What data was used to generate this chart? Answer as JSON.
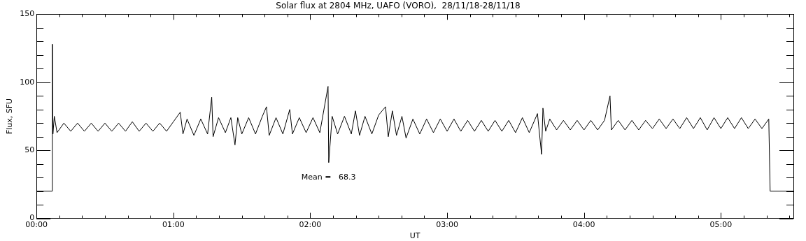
{
  "chart_data": {
    "type": "line",
    "title": "Solar flux at 2804 MHz, UAFO (VORO),  28/11/18-28/11/18",
    "xlabel": "UT",
    "ylabel": "Flux, SFU",
    "x": [
      0,
      0.115,
      0.116,
      0.12,
      0.13,
      0.15,
      0.2,
      0.25,
      0.3,
      0.35,
      0.4,
      0.45,
      0.5,
      0.55,
      0.6,
      0.65,
      0.7,
      0.75,
      0.8,
      0.85,
      0.9,
      0.95,
      1.0,
      1.05,
      1.07,
      1.1,
      1.15,
      1.2,
      1.25,
      1.28,
      1.29,
      1.33,
      1.38,
      1.42,
      1.45,
      1.47,
      1.5,
      1.55,
      1.6,
      1.65,
      1.68,
      1.7,
      1.75,
      1.8,
      1.85,
      1.87,
      1.92,
      1.97,
      2.02,
      2.07,
      2.13,
      2.135,
      2.16,
      2.2,
      2.25,
      2.3,
      2.33,
      2.36,
      2.4,
      2.45,
      2.5,
      2.55,
      2.57,
      2.6,
      2.63,
      2.67,
      2.7,
      2.75,
      2.8,
      2.85,
      2.9,
      2.95,
      3.0,
      3.05,
      3.1,
      3.15,
      3.2,
      3.25,
      3.3,
      3.35,
      3.4,
      3.45,
      3.5,
      3.55,
      3.6,
      3.66,
      3.69,
      3.7,
      3.72,
      3.75,
      3.8,
      3.85,
      3.9,
      3.95,
      4.0,
      4.05,
      4.1,
      4.15,
      4.19,
      4.2,
      4.25,
      4.3,
      4.35,
      4.4,
      4.45,
      4.5,
      4.55,
      4.6,
      4.65,
      4.7,
      4.75,
      4.8,
      4.85,
      4.9,
      4.95,
      5.0,
      5.05,
      5.1,
      5.15,
      5.2,
      5.25,
      5.3,
      5.35,
      5.36,
      5.53
    ],
    "series": [
      {
        "color": "#000000",
        "values": [
          20,
          20,
          128,
          62,
          75,
          63,
          70,
          64,
          70,
          64,
          70,
          64,
          70,
          64,
          70,
          64,
          71,
          64,
          70,
          64,
          70,
          64,
          71,
          78,
          62,
          73,
          61,
          73,
          62,
          89,
          60,
          74,
          63,
          74,
          54,
          74,
          62,
          74,
          62,
          75,
          82,
          61,
          74,
          62,
          80,
          62,
          74,
          63,
          74,
          63,
          97,
          41,
          75,
          62,
          75,
          62,
          79,
          61,
          75,
          62,
          76,
          82,
          60,
          79,
          61,
          75,
          59,
          73,
          62,
          73,
          63,
          73,
          64,
          73,
          64,
          72,
          64,
          72,
          64,
          72,
          64,
          72,
          63,
          74,
          63,
          77,
          47,
          81,
          64,
          73,
          65,
          72,
          65,
          72,
          65,
          72,
          65,
          72,
          90,
          65,
          72,
          65,
          72,
          65,
          72,
          66,
          73,
          66,
          73,
          66,
          74,
          66,
          74,
          65,
          74,
          66,
          74,
          66,
          74,
          66,
          73,
          66,
          73,
          20,
          20
        ]
      }
    ],
    "xlim": [
      0,
      5.53
    ],
    "xticks": [
      {
        "value": 0,
        "label": "00:00"
      },
      {
        "value": 0.1667,
        "label": null
      },
      {
        "value": 0.3333,
        "label": null
      },
      {
        "value": 0.5,
        "label": null
      },
      {
        "value": 0.6667,
        "label": null
      },
      {
        "value": 0.8333,
        "label": null
      },
      {
        "value": 1,
        "label": "01:00"
      },
      {
        "value": 1.1667,
        "label": null
      },
      {
        "value": 1.3333,
        "label": null
      },
      {
        "value": 1.5,
        "label": null
      },
      {
        "value": 1.6667,
        "label": null
      },
      {
        "value": 1.8333,
        "label": null
      },
      {
        "value": 2,
        "label": "02:00"
      },
      {
        "value": 2.1667,
        "label": null
      },
      {
        "value": 2.3333,
        "label": null
      },
      {
        "value": 2.5,
        "label": null
      },
      {
        "value": 2.6667,
        "label": null
      },
      {
        "value": 2.8333,
        "label": null
      },
      {
        "value": 3,
        "label": "03:00"
      },
      {
        "value": 3.1667,
        "label": null
      },
      {
        "value": 3.3333,
        "label": null
      },
      {
        "value": 3.5,
        "label": null
      },
      {
        "value": 3.6667,
        "label": null
      },
      {
        "value": 3.8333,
        "label": null
      },
      {
        "value": 4,
        "label": "04:00"
      },
      {
        "value": 4.1667,
        "label": null
      },
      {
        "value": 4.3333,
        "label": null
      },
      {
        "value": 4.5,
        "label": null
      },
      {
        "value": 4.6667,
        "label": null
      },
      {
        "value": 4.8333,
        "label": null
      },
      {
        "value": 5,
        "label": "05:00"
      },
      {
        "value": 5.1667,
        "label": null
      },
      {
        "value": 5.3333,
        "label": null
      },
      {
        "value": 5.5,
        "label": null
      }
    ],
    "ylim": [
      0,
      150
    ],
    "yticks": [
      0,
      {
        "value": 10,
        "label": null
      },
      {
        "value": 20,
        "label": null
      },
      {
        "value": 30,
        "label": null
      },
      {
        "value": 40,
        "label": null
      },
      50,
      {
        "value": 60,
        "label": null
      },
      {
        "value": 70,
        "label": null
      },
      {
        "value": 80,
        "label": null
      },
      {
        "value": 90,
        "label": null
      },
      100,
      {
        "value": 110,
        "label": null
      },
      {
        "value": 120,
        "label": null
      },
      {
        "value": 130,
        "label": null
      },
      {
        "value": 140,
        "label": null
      },
      150
    ],
    "annotations": [
      "Mean =   68.3"
    ],
    "grid": false,
    "legend": false,
    "marker": "none",
    "line_style": "solid"
  }
}
